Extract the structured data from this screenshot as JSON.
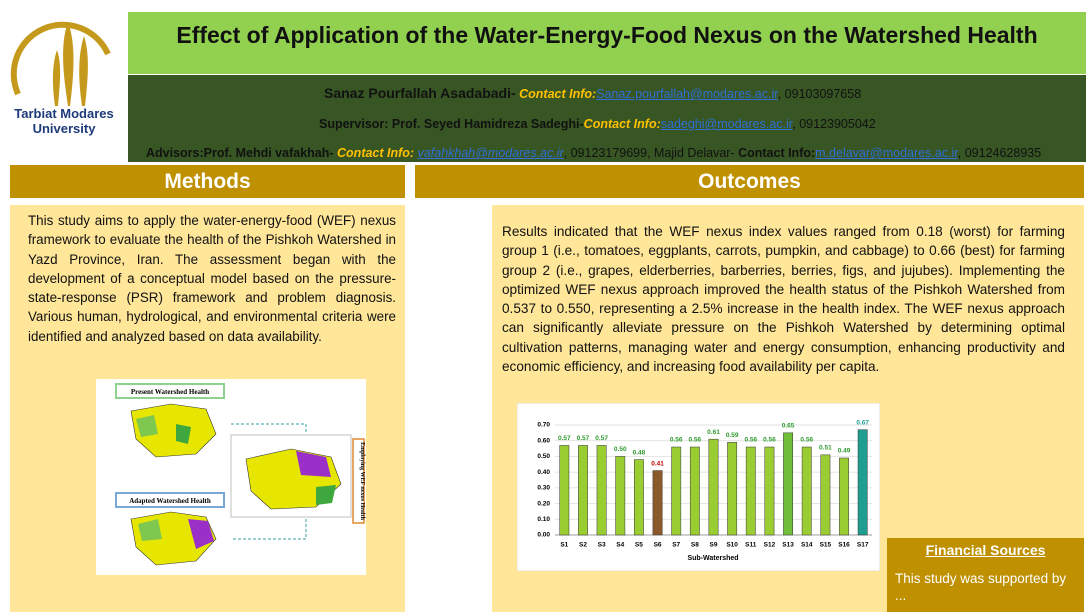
{
  "header": {
    "university": [
      "Tarbiat Modares",
      "University"
    ],
    "title": "Effect of Application of the Water-Energy-Food Nexus on the Watershed Health",
    "author_line": {
      "name": "Sanaz Pourfallah Asadabadi-",
      "contact_label": " Contact Info:",
      "email": "Sanaz.pourfallah@modares.ac.ir",
      "phone": ", 09103097658"
    },
    "supervisor_line": {
      "name": "Supervisor: Prof. Seyed Hamidreza Sadeghi-",
      "contact_label": "Contact Info:",
      "email": "sadeghi@modares.ac.ir",
      "phone": ", 09123905042"
    },
    "advisors_line": {
      "name": "Advisors:Prof. Mehdi vafakhah-",
      "contact_label": " Contact Info: ",
      "email": "vafahkhah@modares.ac.ir",
      "middle": ", 09123179699, Majid Delavar-",
      "contact_label2": " Contact Info:",
      "email2": "m.delavar@modares.ac.ir",
      "phone2": ", 09124628935"
    }
  },
  "methods": {
    "heading": "Methods",
    "text": "This study aims to apply the water-energy-food (WEF) nexus framework to evaluate the health of the Pishkoh Watershed in Yazd Province, Iran. The assessment began with the development of a conceptual model based on the pressure-state-response (PSR) framework and problem diagnosis. Various human, hydrological, and environmental criteria were identified and analyzed based on data availability.",
    "figure": {
      "present": "Present Watershed Health",
      "adapted": "Adapted Watershed Health",
      "employing": "Employing WEF nexus Health"
    }
  },
  "outcomes": {
    "heading": "Outcomes",
    "text": "Results indicated that the WEF nexus index values ranged from 0.18 (worst) for farming group 1 (i.e., tomatoes, eggplants, carrots, pumpkin, and cabbage) to 0.66 (best) for farming group 2 (i.e., grapes, elderberries, barberries, berries, figs, and jujubes). Implementing the optimized WEF nexus approach improved the health status of the Pishkoh Watershed from 0.537 to 0.550, representing a 2.5% increase in the health index. The WEF nexus approach can significantly alleviate pressure on the Pishkoh Watershed by determining optimal cultivation patterns, managing water and energy consumption, enhancing productivity and economic efficiency, and increasing food availability per capita."
  },
  "chart_data": {
    "type": "bar",
    "x_label": "Sub-Watershed",
    "categories": [
      "S1",
      "S2",
      "S3",
      "S4",
      "S5",
      "S6",
      "S7",
      "S8",
      "S9",
      "S10",
      "S11",
      "S12",
      "S13",
      "S14",
      "S15",
      "S16",
      "S17"
    ],
    "values": [
      0.57,
      0.57,
      0.57,
      0.5,
      0.48,
      0.41,
      0.56,
      0.56,
      0.61,
      0.59,
      0.56,
      0.56,
      0.65,
      0.56,
      0.51,
      0.49,
      0.67
    ],
    "value_labels": [
      "0.57",
      "0.57",
      "0.57",
      "0.50",
      "0.48",
      "0.41",
      "0.56",
      "0.56",
      "0.61",
      "0.59",
      "0.56",
      "0.56",
      "0.65",
      "0.56",
      "0.51",
      "0.49",
      "0.67"
    ],
    "colors": [
      "#9acd32",
      "#9acd32",
      "#9acd32",
      "#9acd32",
      "#9acd32",
      "#8b5a2b",
      "#9acd32",
      "#9acd32",
      "#9acd32",
      "#9acd32",
      "#9acd32",
      "#9acd32",
      "#6fbf3a",
      "#9acd32",
      "#9acd32",
      "#9acd32",
      "#1f9e8f"
    ],
    "label_colors": [
      "#2e9a2e",
      "#2e9a2e",
      "#2e9a2e",
      "#2e9a2e",
      "#2e9a2e",
      "#c00000",
      "#2e9a2e",
      "#2e9a2e",
      "#2e9a2e",
      "#2e9a2e",
      "#2e9a2e",
      "#2e9a2e",
      "#2e9a2e",
      "#2e9a2e",
      "#2e9a2e",
      "#2e9a2e",
      "#1f9e8f"
    ],
    "ylim": [
      0,
      0.7
    ],
    "yticks": [
      {
        "value": 0,
        "label": "0.00"
      },
      {
        "value": 0.1,
        "label": "0.10"
      },
      {
        "value": 0.2,
        "label": "0.20"
      },
      {
        "value": 0.3,
        "label": "0.30"
      },
      {
        "value": 0.4,
        "label": "0.40"
      },
      {
        "value": 0.5,
        "label": "0.50"
      },
      {
        "value": 0.6,
        "label": "0.60"
      },
      {
        "value": 0.7,
        "label": "0.70"
      }
    ],
    "grid": true
  },
  "financial": {
    "heading": "Financial Sources",
    "text": "This study was supported by ..."
  }
}
